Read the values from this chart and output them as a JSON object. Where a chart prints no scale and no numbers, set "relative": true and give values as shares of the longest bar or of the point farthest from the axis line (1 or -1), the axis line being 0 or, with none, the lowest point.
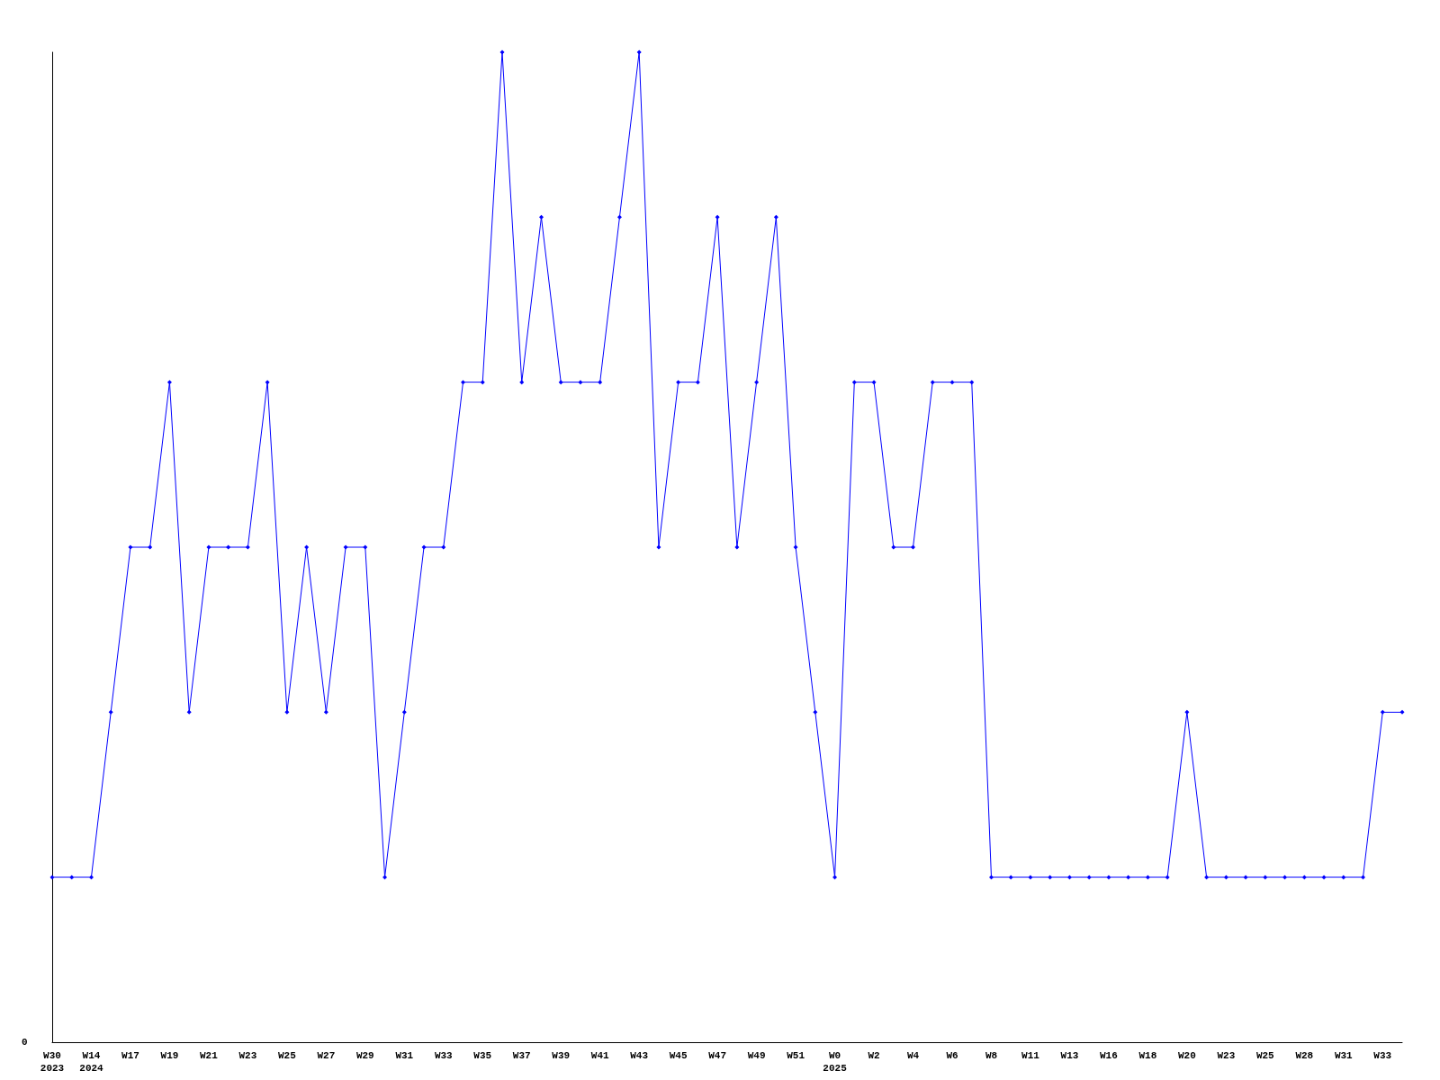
{
  "chart_data": {
    "type": "line",
    "relative": true,
    "color": "#0000ff",
    "marker": "diamond",
    "grid": false,
    "annotations": [
      "0"
    ],
    "categories": [
      "W30\n2023",
      null,
      "W14\n2024",
      null,
      "W17",
      null,
      "W19",
      null,
      "W21",
      null,
      "W23",
      null,
      "W25",
      null,
      "W27",
      null,
      "W29",
      null,
      "W31",
      null,
      "W33",
      null,
      "W35",
      null,
      "W37",
      null,
      "W39",
      null,
      "W41",
      null,
      "W43",
      null,
      "W45",
      null,
      "W47",
      null,
      "W49",
      null,
      "W51",
      null,
      "W0\n2025",
      null,
      "W2",
      null,
      "W4",
      null,
      "W6",
      null,
      "W8",
      null,
      "W11",
      null,
      "W13",
      null,
      "W16",
      null,
      "W18",
      null,
      "W20",
      null,
      "W23",
      null,
      "W25",
      null,
      "W28",
      null,
      "W31",
      null,
      "W33",
      null
    ],
    "values": [
      0.1667,
      0.1667,
      0.1667,
      0.3333,
      0.5,
      0.5,
      0.6667,
      0.3333,
      0.5,
      0.5,
      0.5,
      0.6667,
      0.3333,
      0.5,
      0.3333,
      0.5,
      0.5,
      0.1667,
      0.3333,
      0.5,
      0.5,
      0.6667,
      0.6667,
      1,
      0.6667,
      0.8333,
      0.6667,
      0.6667,
      0.6667,
      0.8333,
      1,
      0.5,
      0.6667,
      0.6667,
      0.8333,
      0.5,
      0.6667,
      0.8333,
      0.5,
      0.3333,
      0.1667,
      0.6667,
      0.6667,
      0.5,
      0.5,
      0.6667,
      0.6667,
      0.6667,
      0.1667,
      0.1667,
      0.1667,
      0.1667,
      0.1667,
      0.1667,
      0.1667,
      0.1667,
      0.1667,
      0.1667,
      0.3333,
      0.1667,
      0.1667,
      0.1667,
      0.1667,
      0.1667,
      0.1667,
      0.1667,
      0.1667,
      0.1667,
      0.3333,
      0.3333
    ]
  }
}
